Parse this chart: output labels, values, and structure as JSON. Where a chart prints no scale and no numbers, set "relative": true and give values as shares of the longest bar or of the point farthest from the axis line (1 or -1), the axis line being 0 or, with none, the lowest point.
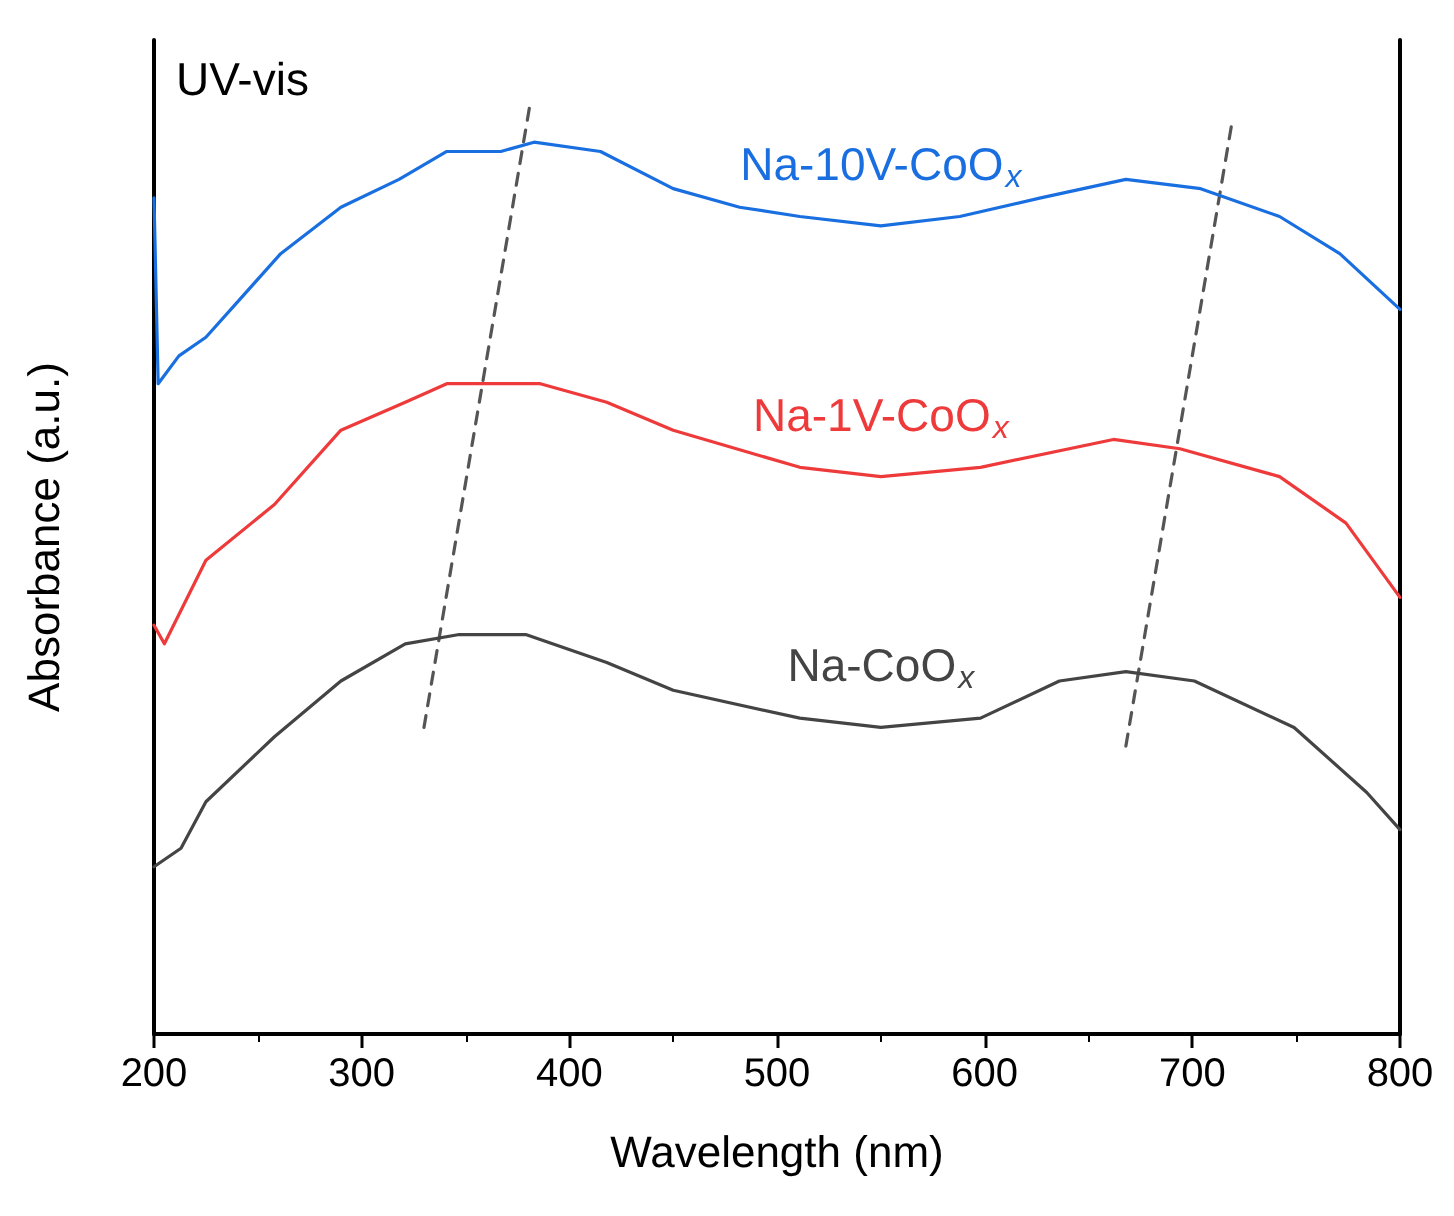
{
  "chart_data": {
    "type": "line",
    "xlabel": "Wavelength (nm)",
    "ylabel": "Absorbance (a.u.)",
    "annotations": [
      "UV-vis"
    ],
    "relative": true,
    "xlim": [
      200,
      800
    ],
    "xticks": [
      200,
      300,
      400,
      500,
      600,
      700,
      800
    ],
    "grid": false,
    "legend": false,
    "marker": "none",
    "series": [
      {
        "name": "Na-10V-CoO$_{x}$",
        "color": "#1a6fe0",
        "x": [
          200,
          202,
          212,
          225,
          241,
          261,
          290,
          318,
          341,
          367,
          383,
          415,
          450,
          482,
          511,
          550,
          588,
          627,
          668,
          704,
          742,
          771,
          800
        ],
        "values": [
          0.9,
          0.7,
          0.73,
          0.75,
          0.79,
          0.84,
          0.89,
          0.92,
          0.95,
          0.95,
          0.96,
          0.95,
          0.91,
          0.89,
          0.88,
          0.87,
          0.88,
          0.9,
          0.92,
          0.91,
          0.88,
          0.84,
          0.78
        ]
      },
      {
        "name": "Na-1V-CoO$_{x}$",
        "color": "#ee3a3a",
        "x": [
          200,
          205,
          225,
          258,
          290,
          321,
          341,
          360,
          386,
          418,
          450,
          511,
          550,
          598,
          662,
          694,
          742,
          774,
          800
        ],
        "values": [
          0.44,
          0.42,
          0.51,
          0.57,
          0.65,
          0.68,
          0.7,
          0.7,
          0.7,
          0.68,
          0.65,
          0.61,
          0.6,
          0.61,
          0.64,
          0.63,
          0.6,
          0.55,
          0.47
        ]
      },
      {
        "name": "Na-CoO$_{x}$",
        "color": "#444444",
        "x": [
          200,
          213,
          225,
          258,
          290,
          321,
          347,
          379,
          418,
          450,
          511,
          550,
          598,
          636,
          668,
          701,
          749,
          784,
          800
        ],
        "values": [
          0.18,
          0.2,
          0.25,
          0.32,
          0.38,
          0.42,
          0.43,
          0.43,
          0.4,
          0.37,
          0.34,
          0.33,
          0.34,
          0.38,
          0.39,
          0.38,
          0.33,
          0.26,
          0.22
        ]
      },
      {
        "type": "line",
        "color": "#555555",
        "line_style": "dashed",
        "x": [
          330,
          381
        ],
        "values": [
          0.33,
          1.0
        ]
      },
      {
        "type": "line",
        "color": "#555555",
        "line_style": "dashed",
        "x": [
          668,
          719
        ],
        "values": [
          0.31,
          0.98
        ]
      }
    ]
  }
}
